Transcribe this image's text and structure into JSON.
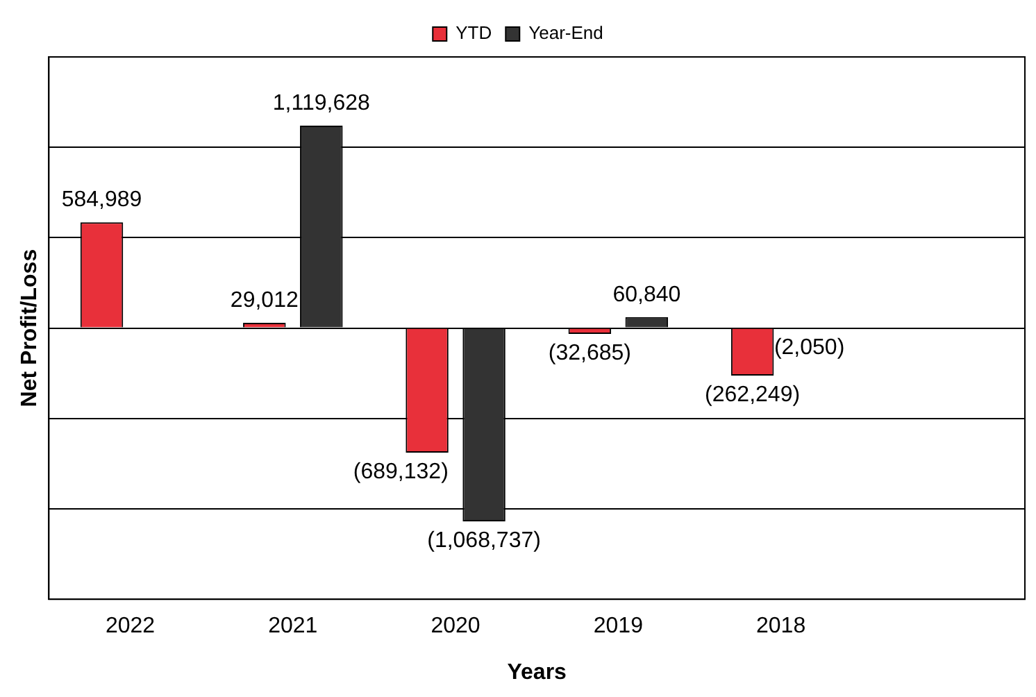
{
  "chart_data": {
    "type": "bar",
    "xlabel": "Years",
    "ylabel": "Net Profit/Loss",
    "categories": [
      "2022",
      "2021",
      "2020",
      "2019",
      "2018",
      null
    ],
    "series": [
      {
        "name": "YTD",
        "color": "#e8303a",
        "values": [
          584989,
          29012,
          -689132,
          -32685,
          -262249,
          null
        ],
        "value_labels": [
          "584,989",
          "29,012",
          "(689,132)",
          "(32,685)",
          "(262,249)",
          null
        ]
      },
      {
        "name": "Year-End",
        "color": "#333333",
        "values": [
          null,
          1119628,
          -1068737,
          60840,
          -2050,
          null
        ],
        "value_labels": [
          null,
          "1,119,628",
          "(1,068,737)",
          "60,840",
          "(2,050)",
          null
        ]
      }
    ],
    "ylim": [
      -1500000,
      1500000
    ],
    "yticks": [
      {
        "value": -1000000,
        "label": null
      },
      {
        "value": -500000,
        "label": null
      },
      {
        "value": 0,
        "label": null
      },
      {
        "value": 500000,
        "label": null
      },
      {
        "value": 1000000,
        "label": null
      }
    ],
    "grid": "y",
    "legend": "top",
    "tick_labels": "x"
  }
}
